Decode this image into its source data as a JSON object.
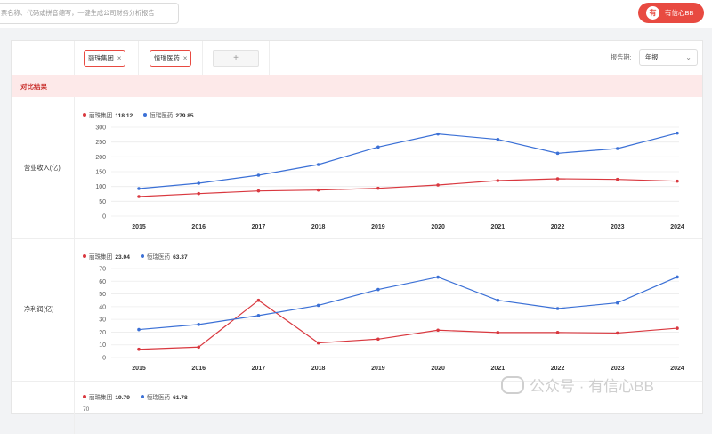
{
  "search": {
    "placeholder": "票名称、代码或拼音缩写，一键生成公司财务分析报告"
  },
  "brand": {
    "label": "有信心BB",
    "logo_text": "有"
  },
  "compare": {
    "companies": [
      "丽珠集团",
      "恒瑞医药"
    ],
    "remove_icon": "×",
    "add_icon": "+",
    "period_label": "报告期:",
    "period_value": "年报",
    "period_chevron": "⌄"
  },
  "result_title": "对比结果",
  "colors": {
    "series1": "#d9383f",
    "series2": "#3b70d6",
    "accent": "#e84a41"
  },
  "metrics": [
    {
      "label": "营业收入(亿)",
      "legend": [
        {
          "name": "丽珠集团",
          "value": "118.12"
        },
        {
          "name": "恒瑞医药",
          "value": "279.85"
        }
      ]
    },
    {
      "label": "净利润(亿)",
      "legend": [
        {
          "name": "丽珠集团",
          "value": "23.04"
        },
        {
          "name": "恒瑞医药",
          "value": "63.37"
        }
      ]
    },
    {
      "label": "",
      "legend": [
        {
          "name": "丽珠集团",
          "value": "19.79"
        },
        {
          "name": "恒瑞医药",
          "value": "61.78"
        }
      ]
    }
  ],
  "chart_data": [
    {
      "type": "line",
      "x": [
        "2015",
        "2016",
        "2017",
        "2018",
        "2019",
        "2020",
        "2021",
        "2022",
        "2023",
        "2024"
      ],
      "ylim": [
        0,
        300
      ],
      "yticks": [
        0,
        50,
        100,
        150,
        200,
        250,
        300
      ],
      "grid": true,
      "legend_position": "top-left",
      "series": [
        {
          "name": "丽珠集团",
          "values": [
            66,
            76,
            85,
            88,
            94,
            105,
            120,
            126,
            124,
            118
          ]
        },
        {
          "name": "恒瑞医药",
          "values": [
            93,
            111,
            138,
            174,
            233,
            277,
            259,
            212,
            228,
            280
          ]
        }
      ]
    },
    {
      "type": "line",
      "x": [
        "2015",
        "2016",
        "2017",
        "2018",
        "2019",
        "2020",
        "2021",
        "2022",
        "2023",
        "2024"
      ],
      "ylim": [
        0,
        70
      ],
      "yticks": [
        0,
        10,
        20,
        30,
        40,
        50,
        60,
        70
      ],
      "grid": true,
      "legend_position": "top-left",
      "series": [
        {
          "name": "丽珠集团",
          "values": [
            6.5,
            8.2,
            45,
            11.5,
            14.5,
            21.5,
            19.7,
            19.7,
            19.3,
            23.04
          ]
        },
        {
          "name": "恒瑞医药",
          "values": [
            22,
            26,
            33,
            41,
            53.5,
            63.3,
            45,
            38.5,
            43,
            63.37
          ]
        }
      ]
    }
  ],
  "partial_chart": {
    "top_tick": "70"
  },
  "watermark": "公众号 · 有信心BB"
}
